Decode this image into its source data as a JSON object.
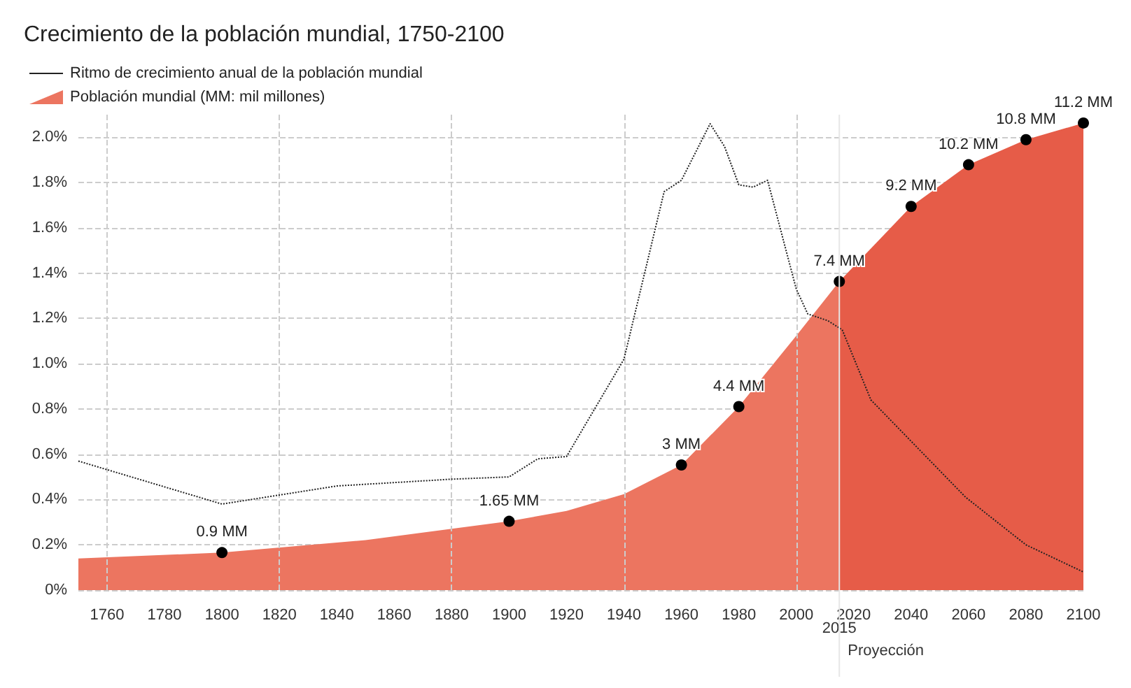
{
  "chart_data": {
    "type": "line",
    "title": "Crecimiento de la población mundial, 1750-2100",
    "legend": "top left",
    "grid": "y",
    "xlim": [
      1750,
      2100
    ],
    "xticks": [
      1760,
      1780,
      1800,
      1820,
      1840,
      1860,
      1880,
      1900,
      1920,
      1940,
      1960,
      1980,
      2000,
      2020,
      2040,
      2060,
      2080,
      2100
    ],
    "annotations": [
      {
        "text": "2015",
        "x": 2015
      }
    ],
    "ylim": [
      0,
      2.1
    ],
    "yticks": [
      {
        "value": 0,
        "label": "0%"
      },
      {
        "value": 0.2,
        "label": "0.2%"
      },
      {
        "value": 0.4,
        "label": "0.4%"
      },
      {
        "value": 0.6,
        "label": "0.6%"
      },
      {
        "value": 0.8,
        "label": "0.8%"
      },
      {
        "value": 1.0,
        "label": "1.0%"
      },
      {
        "value": 1.2,
        "label": "1.2%"
      },
      {
        "value": 1.4,
        "label": "1.4%"
      },
      {
        "value": 1.6,
        "label": "1.6%"
      },
      {
        "value": 1.8,
        "label": "1.8%"
      },
      {
        "value": 2.0,
        "label": "2.0%"
      }
    ],
    "y2lim": [
      0,
      11.4
    ],
    "series": [
      {
        "name": "Ritmo de crecimiento anual de la población mundial",
        "color": "#222222",
        "line_style": "dotted",
        "marker": "none",
        "x": [
          1750,
          1800,
          1820,
          1840,
          1880,
          1900,
          1910,
          1920,
          1940,
          1954,
          1960,
          1970,
          1975,
          1980,
          1985,
          1990,
          2000,
          2004,
          2011,
          2016,
          2026,
          2059,
          2080,
          2100
        ],
        "values": [
          0.57,
          0.38,
          0.42,
          0.46,
          0.49,
          0.5,
          0.58,
          0.59,
          1.02,
          1.76,
          1.81,
          2.06,
          1.96,
          1.79,
          1.78,
          1.81,
          1.33,
          1.22,
          1.19,
          1.15,
          0.84,
          0.41,
          0.2,
          0.08
        ]
      },
      {
        "name": "Población mundial (MM: mil millones)",
        "type": "area",
        "axis": "y2",
        "color": "#ec7560",
        "marker": "circle",
        "x": [
          1750,
          1800,
          1850,
          1900,
          1920,
          1940,
          1960,
          1980,
          2000,
          2015
        ],
        "values": [
          0.76,
          0.9,
          1.2,
          1.65,
          1.9,
          2.3,
          3,
          4.4,
          6.1,
          7.4
        ],
        "value_labels": [
          null,
          "0.9 MM",
          null,
          "1.65 MM",
          null,
          null,
          "3 MM",
          "4.4 MM",
          null,
          "7.4 MM"
        ]
      },
      {
        "type": "area",
        "axis": "y2",
        "color": "#e65c48",
        "marker": "circle",
        "x": [
          2015,
          2040,
          2060,
          2080,
          2100
        ],
        "values": [
          7.4,
          9.2,
          10.2,
          10.8,
          11.2
        ],
        "value_labels": [
          null,
          "9.2 MM",
          "10.2 MM",
          "10.8 MM",
          "11.2 MM"
        ]
      }
    ],
    "ref_lines": [
      {
        "axis": "x",
        "value": 1760,
        "color": "#cccccc",
        "line_style": "dashed"
      },
      {
        "axis": "x",
        "value": 1820,
        "color": "#cccccc",
        "line_style": "dashed"
      },
      {
        "axis": "x",
        "value": 1880,
        "color": "#cccccc",
        "line_style": "dashed"
      },
      {
        "axis": "x",
        "value": 1940,
        "color": "#cccccc",
        "line_style": "dashed"
      },
      {
        "axis": "x",
        "value": 2000,
        "color": "#cccccc",
        "line_style": "dashed"
      },
      {
        "axis": "x",
        "value": 2015,
        "label": "Proyección",
        "color": "#e6e6e6",
        "line_style": "solid"
      }
    ]
  }
}
